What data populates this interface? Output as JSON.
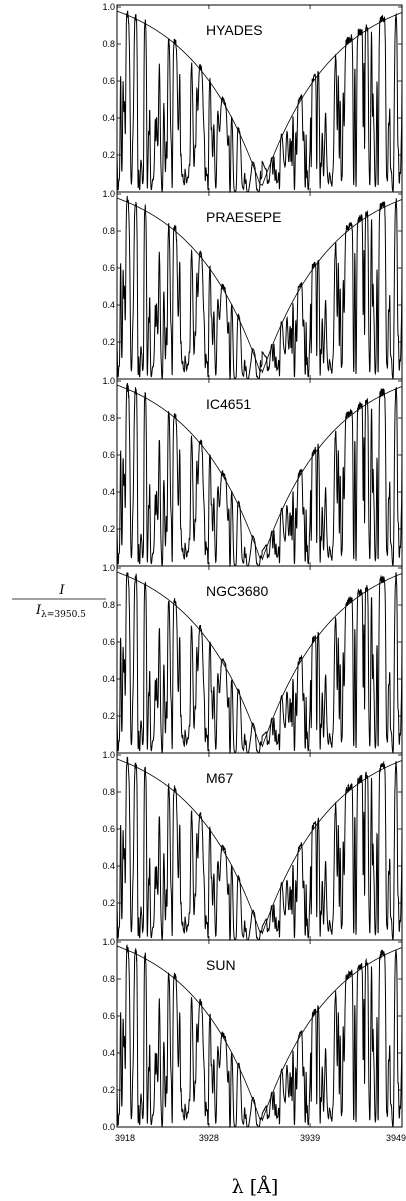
{
  "chart_data": {
    "type": "line",
    "xlabel": "λ [Å]",
    "ylabel_numerator": "I",
    "ylabel_denominator_symbol": "I",
    "ylabel_denominator_subscript": "λ=3950.5",
    "xlim": [
      3918,
      3949
    ],
    "xticks": [
      "3918",
      "3928",
      "3939",
      "3949"
    ],
    "ylim": [
      0.0,
      1.0
    ],
    "yticks": [
      "0.0",
      "0.2",
      "0.4",
      "0.6",
      "0.8",
      "1.0"
    ],
    "line_core": 3933.7,
    "panels": [
      {
        "name": "HYADES",
        "core_emission": 0.12,
        "core_min": 0.04
      },
      {
        "name": "PRAESEPE",
        "core_emission": 0.1,
        "core_min": 0.05
      },
      {
        "name": "IC4651",
        "core_emission": 0.03,
        "core_min": 0.05
      },
      {
        "name": "NGC3680",
        "core_emission": 0.04,
        "core_min": 0.05
      },
      {
        "name": "M67",
        "core_emission": 0.02,
        "core_min": 0.05
      },
      {
        "name": "SUN",
        "core_emission": 0.02,
        "core_min": 0.05
      }
    ],
    "series": [
      {
        "style": "observed spectrum"
      },
      {
        "style": "reference profile"
      }
    ]
  }
}
